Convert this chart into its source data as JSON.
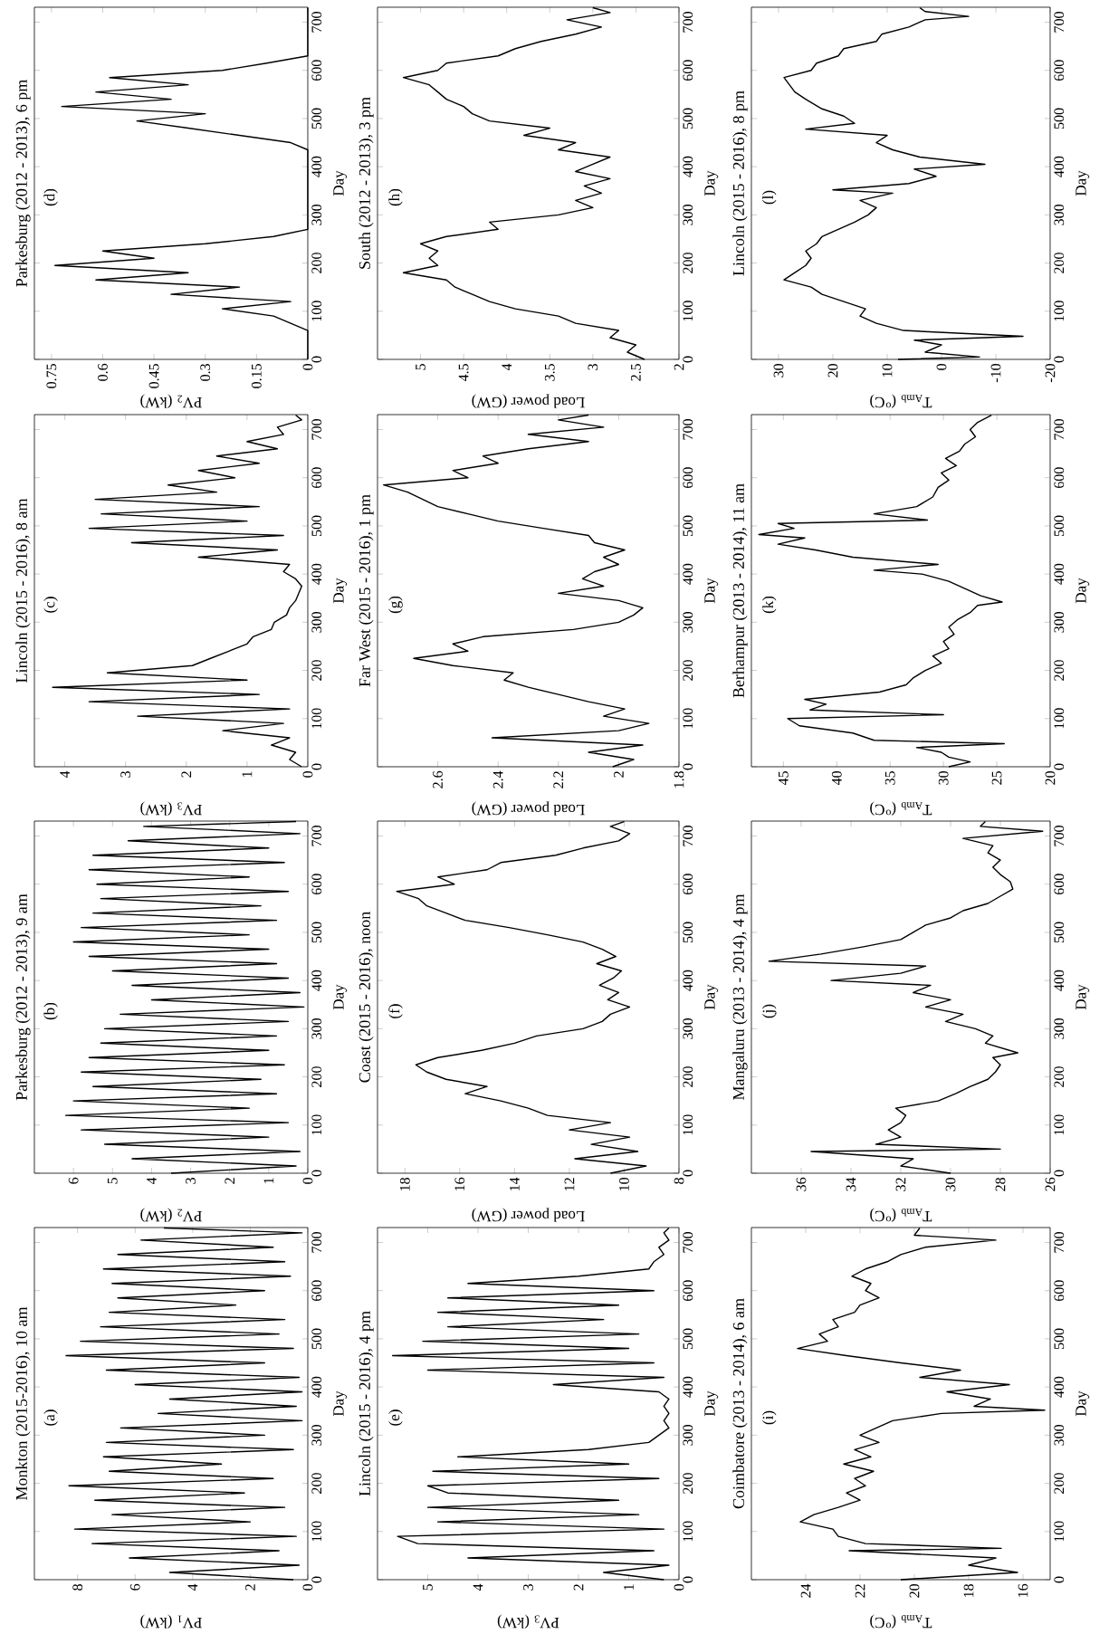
{
  "chart_data": [
    {
      "type": "line",
      "title": "Monkton (2015-2016), 10 am",
      "annotations": [
        "(a)"
      ],
      "ylabel": "Day",
      "xlabel": "PV$_{1}$ (kW)",
      "color": "#000000",
      "ylim": [
        0,
        731
      ],
      "xlim": [
        9.5,
        0
      ],
      "yticks": [
        0,
        100,
        200,
        300,
        400,
        500,
        600,
        700
      ],
      "xticks": [
        0,
        2,
        4,
        6,
        8
      ],
      "values": [
        0,
        15,
        30,
        45,
        60,
        75,
        90,
        105,
        120,
        135,
        150,
        165,
        180,
        195,
        210,
        225,
        240,
        255,
        270,
        285,
        300,
        315,
        330,
        345,
        360,
        375,
        390,
        405,
        420,
        435,
        450,
        465,
        480,
        495,
        510,
        525,
        540,
        555,
        570,
        585,
        600,
        615,
        630,
        645,
        660,
        675,
        690,
        705,
        720,
        730
      ],
      "x": [
        0.5,
        4.8,
        0.3,
        6.2,
        1.0,
        7.5,
        0.4,
        8.1,
        2.0,
        6.8,
        0.8,
        7.4,
        2.2,
        8.3,
        1.2,
        6.9,
        3.0,
        7.1,
        0.5,
        7.0,
        1.5,
        6.5,
        0.2,
        5.2,
        0.4,
        4.8,
        0.2,
        6.0,
        0.3,
        7.0,
        1.5,
        8.4,
        0.5,
        7.9,
        1.0,
        7.2,
        0.8,
        6.9,
        2.5,
        6.6,
        1.5,
        6.8,
        0.6,
        7.1,
        0.8,
        6.6,
        1.2,
        5.8,
        0.2,
        5.0
      ]
    },
    {
      "type": "line",
      "title": "Parkesburg (2012 - 2013), 9 am",
      "annotations": [
        "(b)"
      ],
      "ylabel": "Day",
      "xlabel": "PV$_{2}$ (kW)",
      "color": "#000000",
      "ylim": [
        0,
        731
      ],
      "xlim": [
        7,
        0
      ],
      "yticks": [
        0,
        100,
        200,
        300,
        400,
        500,
        600,
        700
      ],
      "xticks": [
        0,
        1,
        2,
        3,
        4,
        5,
        6
      ],
      "values": [
        0,
        15,
        30,
        45,
        60,
        75,
        90,
        105,
        120,
        135,
        150,
        165,
        180,
        195,
        210,
        225,
        240,
        255,
        270,
        285,
        300,
        315,
        330,
        345,
        360,
        375,
        390,
        405,
        420,
        435,
        450,
        465,
        480,
        495,
        510,
        525,
        540,
        555,
        570,
        585,
        600,
        615,
        630,
        645,
        660,
        675,
        690,
        705,
        720,
        730
      ],
      "x": [
        3.5,
        0.3,
        4.5,
        0.2,
        5.2,
        1.0,
        5.8,
        0.5,
        6.2,
        1.5,
        6.0,
        0.8,
        5.5,
        1.2,
        5.8,
        0.6,
        5.6,
        1.0,
        5.3,
        0.8,
        5.2,
        0.5,
        4.8,
        0.1,
        4.0,
        0.2,
        4.5,
        0.5,
        5.0,
        0.8,
        5.6,
        1.0,
        6.0,
        1.5,
        5.8,
        0.8,
        5.5,
        1.2,
        5.3,
        0.5,
        5.4,
        1.5,
        5.6,
        0.6,
        5.5,
        1.0,
        4.6,
        0.2,
        4.2,
        0.3
      ]
    },
    {
      "type": "line",
      "title": "Lincoln (2015 - 2016), 8 am",
      "annotations": [
        "(c)"
      ],
      "ylabel": "Day",
      "xlabel": "PV$_{3}$ (kW)",
      "color": "#000000",
      "ylim": [
        0,
        731
      ],
      "xlim": [
        4.5,
        0
      ],
      "yticks": [
        0,
        100,
        200,
        300,
        400,
        500,
        600,
        700
      ],
      "xticks": [
        0,
        1,
        2,
        3,
        4
      ],
      "values": [
        0,
        15,
        30,
        45,
        60,
        75,
        90,
        105,
        120,
        135,
        150,
        165,
        180,
        195,
        210,
        225,
        240,
        255,
        270,
        285,
        300,
        315,
        330,
        345,
        360,
        375,
        390,
        405,
        420,
        435,
        450,
        465,
        480,
        495,
        510,
        525,
        540,
        555,
        570,
        585,
        600,
        615,
        630,
        645,
        660,
        675,
        690,
        705,
        720,
        730
      ],
      "x": [
        0.1,
        0.3,
        0.2,
        0.6,
        0.3,
        1.4,
        0.4,
        2.8,
        0.3,
        3.6,
        0.8,
        4.2,
        1.0,
        3.3,
        1.9,
        1.6,
        1.3,
        1.0,
        0.9,
        0.6,
        0.55,
        0.35,
        0.3,
        0.2,
        0.15,
        0.1,
        0.2,
        0.4,
        0.3,
        1.8,
        0.5,
        2.9,
        0.4,
        3.6,
        1.0,
        3.4,
        0.8,
        3.5,
        1.5,
        2.3,
        1.2,
        1.8,
        0.8,
        1.5,
        0.5,
        1.0,
        0.4,
        0.5,
        0.1,
        0.2
      ]
    },
    {
      "type": "line",
      "title": "Parkesburg (2012 - 2013), 6 pm",
      "annotations": [
        "(d)"
      ],
      "ylabel": "Day",
      "xlabel": "PV$_{2}$ (kW)",
      "color": "#000000",
      "ylim": [
        0,
        731
      ],
      "xlim": [
        0.8,
        0
      ],
      "yticks": [
        0,
        100,
        200,
        300,
        400,
        500,
        600,
        700
      ],
      "xticks": [
        0,
        0.15,
        0.3,
        0.45,
        0.6,
        0.75
      ],
      "values": [
        0,
        30,
        60,
        75,
        90,
        105,
        120,
        135,
        150,
        165,
        180,
        195,
        210,
        225,
        240,
        255,
        270,
        300,
        330,
        360,
        390,
        420,
        435,
        450,
        465,
        480,
        495,
        510,
        525,
        540,
        555,
        570,
        585,
        600,
        615,
        630,
        660,
        690,
        730
      ],
      "x": [
        0,
        0,
        0,
        0.05,
        0.1,
        0.25,
        0.05,
        0.4,
        0.2,
        0.62,
        0.35,
        0.74,
        0.45,
        0.6,
        0.3,
        0.1,
        0,
        0,
        0,
        0,
        0,
        0,
        0,
        0.05,
        0.2,
        0.35,
        0.5,
        0.3,
        0.72,
        0.4,
        0.62,
        0.35,
        0.58,
        0.25,
        0.12,
        0,
        0,
        0,
        0
      ]
    },
    {
      "type": "line",
      "title": "Lincoln (2015 - 2016), 4 pm",
      "annotations": [
        "(e)"
      ],
      "ylabel": "Day",
      "xlabel": "PV$_{3}$ (kW)",
      "color": "#000000",
      "ylim": [
        0,
        731
      ],
      "xlim": [
        6,
        0
      ],
      "yticks": [
        0,
        100,
        200,
        300,
        400,
        500,
        600,
        700
      ],
      "xticks": [
        0,
        1,
        2,
        3,
        4,
        5
      ],
      "values": [
        0,
        15,
        30,
        45,
        60,
        75,
        90,
        105,
        120,
        135,
        150,
        165,
        180,
        195,
        210,
        225,
        240,
        255,
        270,
        285,
        300,
        315,
        330,
        345,
        360,
        375,
        390,
        405,
        420,
        435,
        450,
        465,
        480,
        495,
        510,
        525,
        540,
        555,
        570,
        585,
        600,
        615,
        630,
        645,
        660,
        675,
        690,
        705,
        720,
        730
      ],
      "x": [
        0.3,
        1.5,
        0.2,
        4.2,
        0.5,
        5.2,
        5.6,
        0.3,
        4.8,
        0.8,
        5.0,
        1.2,
        4.6,
        5.0,
        0.4,
        4.9,
        1.0,
        4.4,
        1.8,
        0.6,
        0.4,
        0.2,
        0.3,
        0.2,
        0.3,
        0.2,
        0.4,
        2.5,
        0.3,
        5.0,
        0.5,
        5.7,
        1.0,
        5.1,
        0.8,
        4.6,
        1.5,
        4.8,
        1.2,
        4.6,
        0.5,
        4.2,
        2.0,
        0.6,
        0.5,
        0.3,
        0.4,
        0.2,
        0.3,
        0.2
      ]
    },
    {
      "type": "line",
      "title": "Coast (2015 - 2016), noon",
      "annotations": [
        "(f)"
      ],
      "ylabel": "Day",
      "xlabel": "Load power (GW)",
      "color": "#000000",
      "ylim": [
        0,
        731
      ],
      "xlim": [
        19,
        8
      ],
      "yticks": [
        0,
        100,
        200,
        300,
        400,
        500,
        600,
        700
      ],
      "xticks": [
        8,
        10,
        12,
        14,
        16,
        18
      ],
      "values": [
        0,
        15,
        30,
        45,
        60,
        75,
        90,
        105,
        120,
        135,
        150,
        165,
        180,
        195,
        210,
        225,
        240,
        255,
        270,
        285,
        300,
        315,
        330,
        345,
        360,
        375,
        390,
        405,
        420,
        435,
        450,
        465,
        480,
        495,
        510,
        525,
        540,
        555,
        570,
        585,
        600,
        615,
        630,
        645,
        660,
        675,
        690,
        705,
        720,
        730
      ],
      "x": [
        10.5,
        9.2,
        11.8,
        9.5,
        11.2,
        9.8,
        12.0,
        10.5,
        12.8,
        13.5,
        14.5,
        15.8,
        15.0,
        16.5,
        17.2,
        17.6,
        16.8,
        15.2,
        14.0,
        13.2,
        11.5,
        10.8,
        10.5,
        9.8,
        10.6,
        10.2,
        10.9,
        10.4,
        10.1,
        11.0,
        10.3,
        10.8,
        11.5,
        12.8,
        14.2,
        15.8,
        16.5,
        17.2,
        17.5,
        18.3,
        16.2,
        16.8,
        15.0,
        14.5,
        12.5,
        11.5,
        10.2,
        9.8,
        10.5,
        10.0
      ]
    },
    {
      "type": "line",
      "title": "Far West (2015 - 2016), 1 pm",
      "annotations": [
        "(g)"
      ],
      "ylabel": "Day",
      "xlabel": "Load power (GW)",
      "color": "#000000",
      "ylim": [
        0,
        731
      ],
      "xlim": [
        2.8,
        1.8
      ],
      "yticks": [
        0,
        100,
        200,
        300,
        400,
        500,
        600,
        700
      ],
      "xticks": [
        1.8,
        2,
        2.2,
        2.4,
        2.6
      ],
      "values": [
        0,
        15,
        30,
        45,
        60,
        75,
        90,
        105,
        120,
        135,
        150,
        165,
        180,
        195,
        210,
        225,
        240,
        255,
        270,
        285,
        300,
        315,
        330,
        345,
        360,
        375,
        390,
        405,
        420,
        435,
        450,
        465,
        480,
        495,
        510,
        525,
        540,
        555,
        570,
        585,
        600,
        615,
        630,
        645,
        660,
        675,
        690,
        705,
        720,
        730
      ],
      "x": [
        2.02,
        1.95,
        2.1,
        1.92,
        2.42,
        2.0,
        1.9,
        2.05,
        1.98,
        2.1,
        2.2,
        2.3,
        2.38,
        2.35,
        2.55,
        2.68,
        2.5,
        2.55,
        2.45,
        2.15,
        2.0,
        1.95,
        1.92,
        2.0,
        2.2,
        2.05,
        2.12,
        2.08,
        2.0,
        2.05,
        1.98,
        2.08,
        2.1,
        2.25,
        2.4,
        2.5,
        2.6,
        2.65,
        2.7,
        2.78,
        2.5,
        2.55,
        2.4,
        2.45,
        2.3,
        2.1,
        2.3,
        2.05,
        2.2,
        2.1
      ]
    },
    {
      "type": "line",
      "title": "South (2012 - 2013), 3 pm",
      "annotations": [
        "(h)"
      ],
      "ylabel": "Day",
      "xlabel": "Load power (GW)",
      "color": "#000000",
      "ylim": [
        0,
        731
      ],
      "xlim": [
        5.5,
        2
      ],
      "yticks": [
        0,
        100,
        200,
        300,
        400,
        500,
        600,
        700
      ],
      "xticks": [
        2,
        2.5,
        3,
        3.5,
        4,
        4.5,
        5
      ],
      "values": [
        0,
        15,
        30,
        45,
        60,
        75,
        90,
        105,
        120,
        135,
        150,
        165,
        180,
        195,
        210,
        225,
        240,
        255,
        270,
        285,
        300,
        315,
        330,
        345,
        360,
        375,
        390,
        405,
        420,
        435,
        450,
        465,
        480,
        495,
        510,
        525,
        540,
        555,
        570,
        585,
        600,
        615,
        630,
        645,
        660,
        675,
        690,
        705,
        720,
        730
      ],
      "x": [
        2.4,
        2.6,
        2.5,
        2.8,
        2.7,
        3.2,
        3.4,
        3.9,
        4.2,
        4.4,
        4.6,
        4.7,
        5.2,
        4.8,
        4.9,
        4.8,
        5.0,
        4.7,
        4.1,
        4.2,
        3.4,
        3.0,
        3.2,
        2.9,
        3.1,
        2.8,
        3.2,
        3.0,
        2.8,
        3.4,
        3.2,
        3.8,
        3.5,
        4.2,
        4.4,
        4.5,
        4.7,
        4.8,
        4.9,
        5.2,
        4.8,
        4.7,
        4.1,
        3.9,
        3.6,
        3.2,
        2.9,
        3.3,
        2.8,
        3.0
      ]
    },
    {
      "type": "line",
      "title": "Coimbatore (2013 - 2014), 6 am",
      "annotations": [
        "(i)"
      ],
      "ylabel": "Day",
      "xlabel": "T$_{Amb}$ ($^{o}$C)",
      "color": "#000000",
      "ylim": [
        0,
        731
      ],
      "xlim": [
        26,
        15
      ],
      "yticks": [
        0,
        100,
        200,
        300,
        400,
        500,
        600,
        700
      ],
      "xticks": [
        16,
        18,
        20,
        22,
        24
      ],
      "values": [
        0,
        15,
        30,
        45,
        60,
        65,
        75,
        90,
        105,
        120,
        135,
        150,
        165,
        180,
        195,
        210,
        225,
        240,
        255,
        270,
        285,
        300,
        315,
        330,
        345,
        352,
        360,
        375,
        390,
        405,
        420,
        435,
        450,
        465,
        480,
        495,
        510,
        525,
        540,
        555,
        570,
        585,
        600,
        615,
        630,
        645,
        660,
        675,
        690,
        705,
        715,
        730
      ],
      "x": [
        20.5,
        16.2,
        18.0,
        17.0,
        22.4,
        16.8,
        21.8,
        22.8,
        23.0,
        24.2,
        23.7,
        22.8,
        22.0,
        22.5,
        21.8,
        22.2,
        21.5,
        22.6,
        21.6,
        22.2,
        21.3,
        22.0,
        21.4,
        20.8,
        19.0,
        15.2,
        17.8,
        17.2,
        18.8,
        16.5,
        19.8,
        18.3,
        20.5,
        22.5,
        24.3,
        23.2,
        23.5,
        22.8,
        23.0,
        22.2,
        22.0,
        21.3,
        21.8,
        21.6,
        22.3,
        21.8,
        21.0,
        20.5,
        19.6,
        17.0,
        20.0,
        19.8
      ]
    },
    {
      "type": "line",
      "title": "Mangaluru (2013 - 2014), 4 pm",
      "annotations": [
        "(j)"
      ],
      "ylabel": "Day",
      "xlabel": "T$_{Amb}$ ($^{o}$C)",
      "color": "#000000",
      "ylim": [
        0,
        731
      ],
      "xlim": [
        38,
        26
      ],
      "yticks": [
        0,
        100,
        200,
        300,
        400,
        500,
        600,
        700
      ],
      "xticks": [
        26,
        28,
        30,
        32,
        34,
        36
      ],
      "values": [
        0,
        15,
        30,
        45,
        50,
        60,
        75,
        90,
        105,
        120,
        135,
        150,
        165,
        180,
        195,
        210,
        225,
        240,
        250,
        270,
        285,
        300,
        315,
        330,
        345,
        360,
        375,
        390,
        400,
        415,
        430,
        440,
        455,
        470,
        485,
        500,
        515,
        530,
        545,
        560,
        575,
        590,
        605,
        620,
        635,
        650,
        665,
        680,
        695,
        710,
        720,
        730
      ],
      "x": [
        30.0,
        32.0,
        31.5,
        35.6,
        28.0,
        33.0,
        32.0,
        32.5,
        32.0,
        31.8,
        32.2,
        30.5,
        29.8,
        29.2,
        28.5,
        28.2,
        28.0,
        28.3,
        27.3,
        28.6,
        28.3,
        29.0,
        30.2,
        29.5,
        31.0,
        30.0,
        31.5,
        30.8,
        34.8,
        32.0,
        31.0,
        37.3,
        35.2,
        33.5,
        32.0,
        31.5,
        31.0,
        30.0,
        29.5,
        28.5,
        28.0,
        27.5,
        27.6,
        28.0,
        28.3,
        28.0,
        28.5,
        28.3,
        29.5,
        26.3,
        28.8,
        28.6
      ]
    },
    {
      "type": "line",
      "title": "Berhampur (2013 - 2014), 11 am",
      "annotations": [
        "(k)"
      ],
      "ylabel": "Day",
      "xlabel": "T$_{Amb}$ ($^{o}$C)",
      "color": "#000000",
      "ylim": [
        0,
        731
      ],
      "xlim": [
        48,
        20
      ],
      "yticks": [
        0,
        100,
        200,
        300,
        400,
        500,
        600,
        700
      ],
      "xticks": [
        20,
        25,
        30,
        35,
        40,
        45
      ],
      "values": [
        0,
        10,
        20,
        30,
        40,
        48,
        55,
        70,
        85,
        100,
        108,
        118,
        130,
        140,
        155,
        170,
        185,
        200,
        215,
        230,
        245,
        260,
        275,
        290,
        305,
        320,
        335,
        342,
        355,
        370,
        385,
        400,
        408,
        420,
        435,
        450,
        462,
        475,
        482,
        495,
        505,
        512,
        525,
        540,
        560,
        580,
        595,
        610,
        625,
        640,
        655,
        670,
        685,
        700,
        715,
        730
      ],
      "x": [
        29.5,
        27.5,
        29.5,
        30.2,
        32.5,
        24.3,
        36.5,
        38.5,
        43.5,
        44.6,
        30.0,
        42.5,
        41.0,
        43.0,
        36.0,
        33.5,
        32.8,
        31.7,
        30.2,
        31.0,
        29.5,
        30.0,
        29.0,
        29.5,
        28.7,
        27.5,
        26.8,
        24.5,
        26.5,
        28.0,
        29.5,
        32.0,
        36.5,
        30.5,
        38.5,
        42.0,
        45.5,
        43.0,
        47.3,
        44.0,
        45.5,
        31.5,
        36.5,
        32.5,
        31.0,
        30.5,
        29.5,
        30.2,
        28.8,
        29.8,
        28.5,
        28.0,
        27.0,
        27.5,
        26.8,
        25.5
      ]
    },
    {
      "type": "line",
      "title": "Lincoln (2015 - 2016), 8 pm",
      "annotations": [
        "(l)"
      ],
      "ylabel": "Day",
      "xlabel": "T$_{Amb}$ ($^{o}$C)",
      "color": "#000000",
      "ylim": [
        0,
        731
      ],
      "xlim": [
        35,
        -20
      ],
      "yticks": [
        0,
        100,
        200,
        300,
        400,
        500,
        600,
        700
      ],
      "xticks": [
        -20,
        -10,
        0,
        10,
        20,
        30
      ],
      "values": [
        0,
        5,
        15,
        30,
        40,
        48,
        60,
        75,
        90,
        105,
        120,
        135,
        150,
        165,
        180,
        195,
        210,
        225,
        240,
        255,
        270,
        285,
        300,
        315,
        330,
        345,
        352,
        365,
        380,
        395,
        405,
        420,
        435,
        450,
        465,
        478,
        490,
        505,
        520,
        540,
        555,
        570,
        585,
        600,
        615,
        630,
        645,
        660,
        675,
        690,
        705,
        712,
        722,
        730
      ],
      "x": [
        8,
        -7,
        3,
        0,
        5,
        -15,
        7,
        12,
        15,
        14,
        18,
        22,
        24,
        29,
        27,
        25,
        24,
        25,
        23,
        22,
        19,
        16,
        13.5,
        12,
        15,
        9,
        20,
        6,
        1,
        5,
        -8,
        4,
        9,
        12,
        10,
        25,
        16,
        18,
        22,
        25,
        27,
        28,
        29,
        24,
        23,
        19,
        18,
        12,
        11,
        6,
        3,
        -5,
        3,
        4
      ]
    }
  ]
}
